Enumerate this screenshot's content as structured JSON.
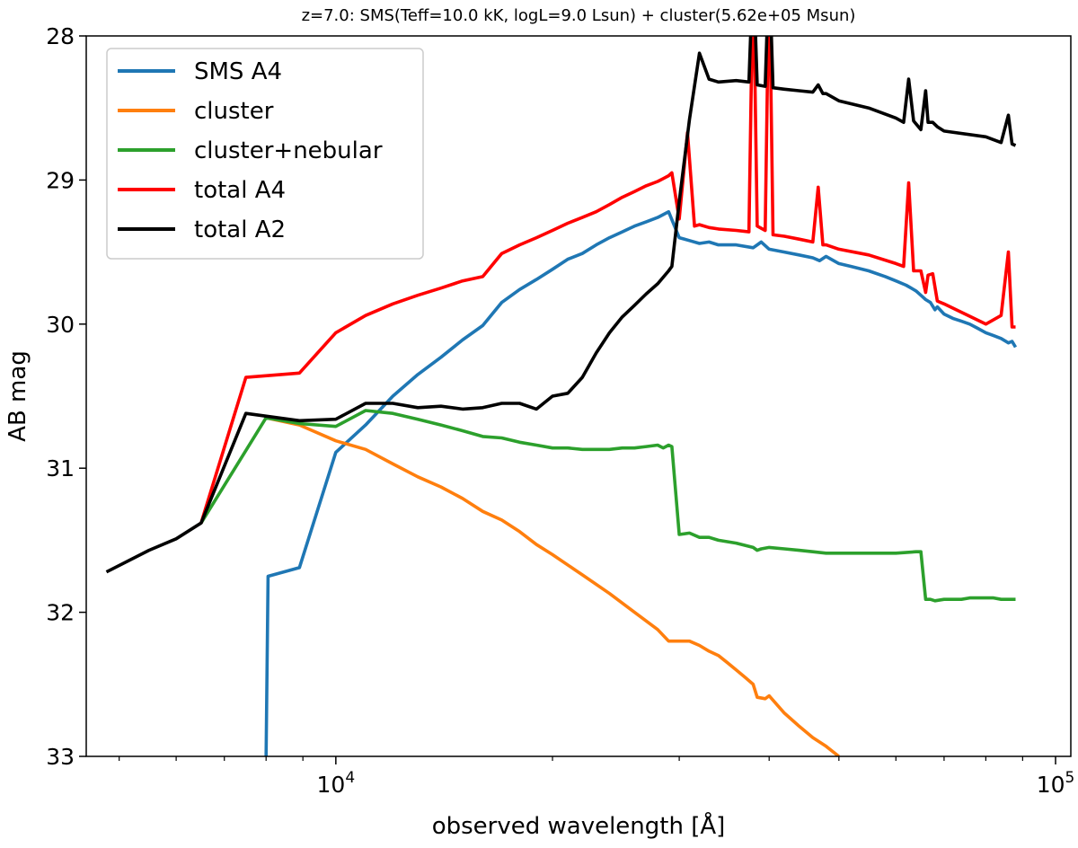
{
  "chart_data": {
    "type": "line",
    "title": "z=7.0: SMS(Teff=10.0 kK, logL=9.0 Lsun) + cluster(5.62e+05 Msun)",
    "xlabel": "observed wavelength [Å]",
    "ylabel": "AB mag",
    "xscale": "log",
    "xlim": [
      4500,
      105000
    ],
    "ylim": [
      33,
      28
    ],
    "y_inverted": true,
    "grid": false,
    "legend_position": "upper-left",
    "x_major_ticks": [
      {
        "value": 10000,
        "base": "10",
        "exp": "4"
      },
      {
        "value": 100000,
        "base": "10",
        "exp": "5"
      }
    ],
    "x_minor_ticks": [
      5000,
      6000,
      7000,
      8000,
      9000,
      20000,
      30000,
      40000,
      50000,
      60000,
      70000,
      80000,
      90000
    ],
    "y_ticks": [
      {
        "value": 28,
        "label": "28"
      },
      {
        "value": 29,
        "label": "29"
      },
      {
        "value": 30,
        "label": "30"
      },
      {
        "value": 31,
        "label": "31"
      },
      {
        "value": 32,
        "label": "32"
      },
      {
        "value": 33,
        "label": "33"
      }
    ],
    "series": [
      {
        "name": "SMS A4",
        "color": "#1f77b4",
        "x": [
          8000,
          8050,
          8900,
          10000,
          11000,
          12000,
          13000,
          14000,
          15000,
          16000,
          17000,
          18000,
          19000,
          20000,
          21000,
          22000,
          23000,
          24000,
          25000,
          26000,
          27000,
          28000,
          28500,
          29000,
          30000,
          31000,
          32000,
          33000,
          34000,
          36000,
          38000,
          38500,
          39000,
          40000,
          42000,
          44000,
          46000,
          47000,
          48000,
          50000,
          52000,
          55000,
          58000,
          60000,
          62000,
          63000,
          64000,
          65000,
          66000,
          67000,
          68000,
          68500,
          70000,
          72000,
          74000,
          76000,
          78000,
          80000,
          82000,
          84000,
          86000,
          87000,
          88000
        ],
        "y": [
          33.0,
          31.75,
          31.69,
          30.89,
          30.7,
          30.5,
          30.35,
          30.23,
          30.11,
          30.01,
          29.85,
          29.76,
          29.69,
          29.62,
          29.55,
          29.51,
          29.45,
          29.4,
          29.36,
          29.32,
          29.29,
          29.26,
          29.24,
          29.22,
          29.4,
          29.42,
          29.44,
          29.43,
          29.45,
          29.45,
          29.47,
          29.45,
          29.43,
          29.48,
          29.5,
          29.52,
          29.54,
          29.56,
          29.53,
          29.58,
          29.6,
          29.63,
          29.67,
          29.7,
          29.73,
          29.75,
          29.77,
          29.8,
          29.83,
          29.85,
          29.9,
          29.88,
          29.93,
          29.96,
          29.98,
          30.0,
          30.03,
          30.06,
          30.08,
          30.1,
          30.13,
          30.12,
          30.16
        ]
      },
      {
        "name": "cluster",
        "color": "#ff7f0e",
        "x": [
          8000,
          8900,
          10000,
          11000,
          12000,
          13000,
          14000,
          15000,
          16000,
          17000,
          18000,
          19000,
          20000,
          22000,
          24000,
          26000,
          28000,
          29000,
          30000,
          31000,
          32000,
          33000,
          34000,
          35000,
          36000,
          37000,
          38000,
          38500,
          39500,
          40000,
          42000,
          44000,
          46000,
          48000,
          50000
        ],
        "y": [
          30.65,
          30.7,
          30.81,
          30.87,
          30.97,
          31.06,
          31.13,
          31.21,
          31.3,
          31.36,
          31.44,
          31.53,
          31.6,
          31.74,
          31.87,
          32.0,
          32.12,
          32.2,
          32.2,
          32.2,
          32.23,
          32.27,
          32.3,
          32.35,
          32.4,
          32.45,
          32.5,
          32.59,
          32.6,
          32.58,
          32.7,
          32.79,
          32.87,
          32.93,
          33.0
        ]
      },
      {
        "name": "cluster+nebular",
        "color": "#2ca02c",
        "x": [
          6500,
          8000,
          8900,
          10000,
          11000,
          12000,
          13000,
          14000,
          15000,
          16000,
          17000,
          18000,
          19000,
          20000,
          21000,
          22000,
          23000,
          24000,
          25000,
          26000,
          27000,
          28000,
          28500,
          29000,
          29300,
          30000,
          31000,
          32000,
          33000,
          34000,
          36000,
          38000,
          38500,
          39000,
          40000,
          42000,
          44000,
          46000,
          48000,
          50000,
          55000,
          60000,
          64000,
          65000,
          66000,
          67000,
          68000,
          70000,
          72000,
          74000,
          76000,
          78000,
          80000,
          82000,
          84000,
          86000,
          88000
        ],
        "y": [
          31.38,
          30.65,
          30.69,
          30.71,
          30.6,
          30.62,
          30.66,
          30.7,
          30.74,
          30.78,
          30.79,
          30.82,
          30.84,
          30.86,
          30.86,
          30.87,
          30.87,
          30.87,
          30.86,
          30.86,
          30.85,
          30.84,
          30.86,
          30.84,
          30.85,
          31.46,
          31.45,
          31.48,
          31.48,
          31.5,
          31.52,
          31.55,
          31.57,
          31.56,
          31.55,
          31.56,
          31.57,
          31.58,
          31.59,
          31.59,
          31.59,
          31.59,
          31.58,
          31.58,
          31.91,
          31.91,
          31.92,
          31.91,
          31.91,
          31.91,
          31.9,
          31.9,
          31.9,
          31.9,
          31.91,
          31.91,
          31.91
        ]
      },
      {
        "name": "total A4",
        "color": "#ff0000",
        "x": [
          6500,
          7500,
          8900,
          10000,
          11000,
          12000,
          13000,
          14000,
          15000,
          16000,
          17000,
          18000,
          19000,
          20000,
          21000,
          22000,
          23000,
          24000,
          25000,
          26000,
          27000,
          28000,
          28500,
          29000,
          29300,
          30000,
          30800,
          31500,
          32000,
          33000,
          34000,
          36000,
          37500,
          38000,
          38500,
          39500,
          40000,
          40500,
          42000,
          44000,
          46000,
          46800,
          47500,
          48000,
          50000,
          55000,
          60000,
          61500,
          62500,
          63500,
          65000,
          66000,
          66500,
          67500,
          68500,
          70000,
          80000,
          84000,
          86000,
          87000,
          88000
        ],
        "y": [
          31.38,
          30.37,
          30.34,
          30.06,
          29.94,
          29.86,
          29.8,
          29.75,
          29.7,
          29.67,
          29.51,
          29.45,
          29.4,
          29.35,
          29.3,
          29.26,
          29.22,
          29.17,
          29.12,
          29.08,
          29.04,
          29.01,
          28.99,
          28.97,
          28.95,
          29.27,
          28.67,
          29.32,
          29.31,
          29.33,
          29.34,
          29.35,
          29.36,
          27.5,
          29.32,
          29.35,
          27.5,
          29.38,
          29.39,
          29.41,
          29.43,
          29.05,
          29.45,
          29.45,
          29.48,
          29.52,
          29.58,
          29.6,
          29.02,
          29.63,
          29.63,
          29.78,
          29.66,
          29.65,
          29.84,
          29.86,
          30.0,
          29.94,
          29.5,
          30.02,
          30.02
        ]
      },
      {
        "name": "total A2",
        "color": "#000000",
        "x": [
          4800,
          5500,
          6000,
          6500,
          7500,
          8900,
          10000,
          11000,
          12000,
          13000,
          14000,
          15000,
          16000,
          17000,
          18000,
          19000,
          20000,
          21000,
          22000,
          23000,
          24000,
          25000,
          26000,
          27000,
          28000,
          29000,
          29300,
          30000,
          31000,
          32000,
          33000,
          34000,
          36000,
          37500,
          38000,
          38500,
          39500,
          40000,
          40500,
          42000,
          44000,
          46000,
          46800,
          47500,
          48000,
          50000,
          55000,
          60000,
          61500,
          62500,
          63500,
          65000,
          66000,
          66500,
          67500,
          68500,
          70000,
          80000,
          84000,
          86000,
          87000,
          88000
        ],
        "y": [
          31.72,
          31.57,
          31.49,
          31.38,
          30.62,
          30.67,
          30.66,
          30.55,
          30.55,
          30.58,
          30.57,
          30.59,
          30.58,
          30.55,
          30.55,
          30.59,
          30.5,
          30.48,
          30.37,
          30.2,
          30.06,
          29.95,
          29.87,
          29.79,
          29.72,
          29.63,
          29.6,
          29.15,
          28.58,
          28.12,
          28.3,
          28.32,
          28.31,
          28.32,
          27.5,
          28.34,
          28.35,
          27.5,
          28.36,
          28.37,
          28.38,
          28.39,
          28.34,
          28.4,
          28.4,
          28.45,
          28.5,
          28.57,
          28.6,
          28.3,
          28.59,
          28.65,
          28.38,
          28.6,
          28.6,
          28.63,
          28.66,
          28.7,
          28.74,
          28.55,
          28.75,
          28.76
        ]
      }
    ]
  }
}
